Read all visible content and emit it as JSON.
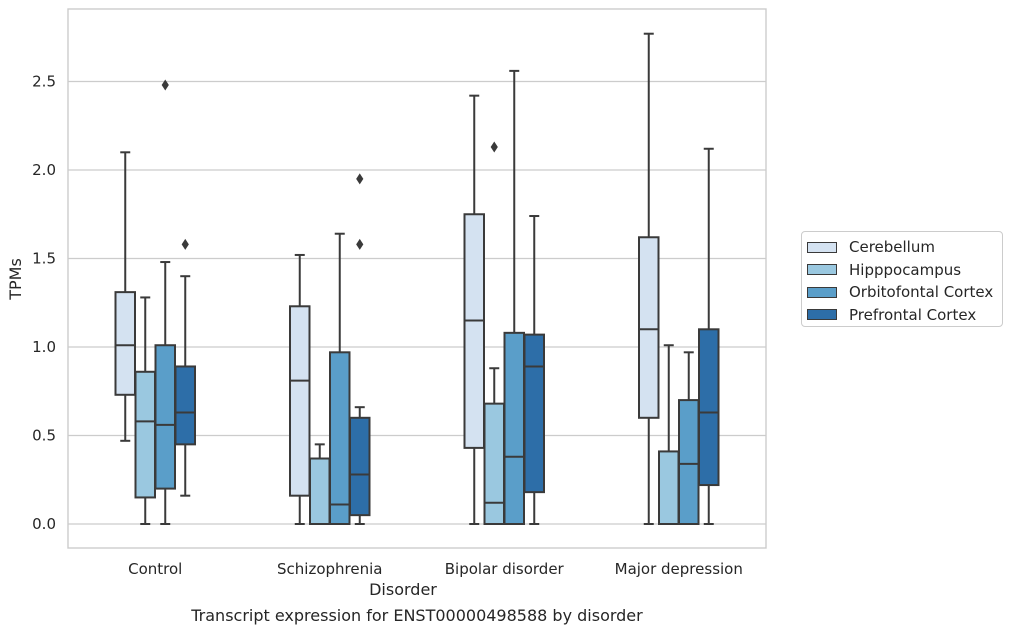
{
  "chart_data": {
    "type": "box",
    "xlabel": "Disorder",
    "ylabel": "TPMs",
    "caption": "Transcript expression for ENST00000498588 by disorder",
    "categories": [
      "Control",
      "Schizophrenia",
      "Bipolar disorder",
      "Major depression"
    ],
    "ylim": [
      -0.13,
      2.92
    ],
    "yticks": [
      "0.0",
      "0.5",
      "1.0",
      "1.5",
      "2.0",
      "2.5"
    ],
    "ytick_values": [
      0,
      0.5,
      1.0,
      1.5,
      2.0,
      2.5
    ],
    "grid": "horizontal",
    "legend_position": "right",
    "series": [
      {
        "name": "Cerebellum",
        "color": "#d4e2f1",
        "boxes": [
          {
            "whislo": 0.47,
            "q1": 0.73,
            "med": 1.01,
            "q3": 1.31,
            "whishi": 2.1,
            "fliers": []
          },
          {
            "whislo": 0.0,
            "q1": 0.16,
            "med": 0.81,
            "q3": 1.23,
            "whishi": 1.52,
            "fliers": []
          },
          {
            "whislo": 0.0,
            "q1": 0.43,
            "med": 1.15,
            "q3": 1.75,
            "whishi": 2.42,
            "fliers": []
          },
          {
            "whislo": 0.0,
            "q1": 0.6,
            "med": 1.1,
            "q3": 1.62,
            "whishi": 2.77,
            "fliers": []
          }
        ]
      },
      {
        "name": "Hipppocampus",
        "color": "#9ac8e0",
        "boxes": [
          {
            "whislo": 0.0,
            "q1": 0.15,
            "med": 0.58,
            "q3": 0.86,
            "whishi": 1.28,
            "fliers": []
          },
          {
            "whislo": 0.0,
            "q1": 0.0,
            "med": 0.0,
            "q3": 0.37,
            "whishi": 0.45,
            "fliers": []
          },
          {
            "whislo": 0.0,
            "q1": 0.0,
            "med": 0.12,
            "q3": 0.68,
            "whishi": 0.88,
            "fliers": [
              2.13
            ]
          },
          {
            "whislo": 0.0,
            "q1": 0.0,
            "med": 0.0,
            "q3": 0.41,
            "whishi": 1.01,
            "fliers": []
          }
        ]
      },
      {
        "name": "Orbitofontal Cortex",
        "color": "#5a9ec9",
        "boxes": [
          {
            "whislo": 0.0,
            "q1": 0.2,
            "med": 0.56,
            "q3": 1.01,
            "whishi": 1.48,
            "fliers": [
              2.48
            ]
          },
          {
            "whislo": 0.0,
            "q1": 0.0,
            "med": 0.11,
            "q3": 0.97,
            "whishi": 1.64,
            "fliers": []
          },
          {
            "whislo": 0.0,
            "q1": 0.0,
            "med": 0.38,
            "q3": 1.08,
            "whishi": 2.56,
            "fliers": []
          },
          {
            "whislo": 0.0,
            "q1": 0.0,
            "med": 0.34,
            "q3": 0.7,
            "whishi": 0.97,
            "fliers": []
          }
        ]
      },
      {
        "name": "Prefrontal Cortex",
        "color": "#2d6ea8",
        "boxes": [
          {
            "whislo": 0.16,
            "q1": 0.45,
            "med": 0.63,
            "q3": 0.89,
            "whishi": 1.4,
            "fliers": [
              1.58
            ]
          },
          {
            "whislo": 0.0,
            "q1": 0.05,
            "med": 0.28,
            "q3": 0.6,
            "whishi": 0.66,
            "fliers": [
              1.58,
              1.95
            ]
          },
          {
            "whislo": 0.0,
            "q1": 0.18,
            "med": 0.89,
            "q3": 1.07,
            "whishi": 1.74,
            "fliers": []
          },
          {
            "whislo": 0.0,
            "q1": 0.22,
            "med": 0.63,
            "q3": 1.1,
            "whishi": 2.12,
            "fliers": []
          }
        ]
      }
    ]
  }
}
